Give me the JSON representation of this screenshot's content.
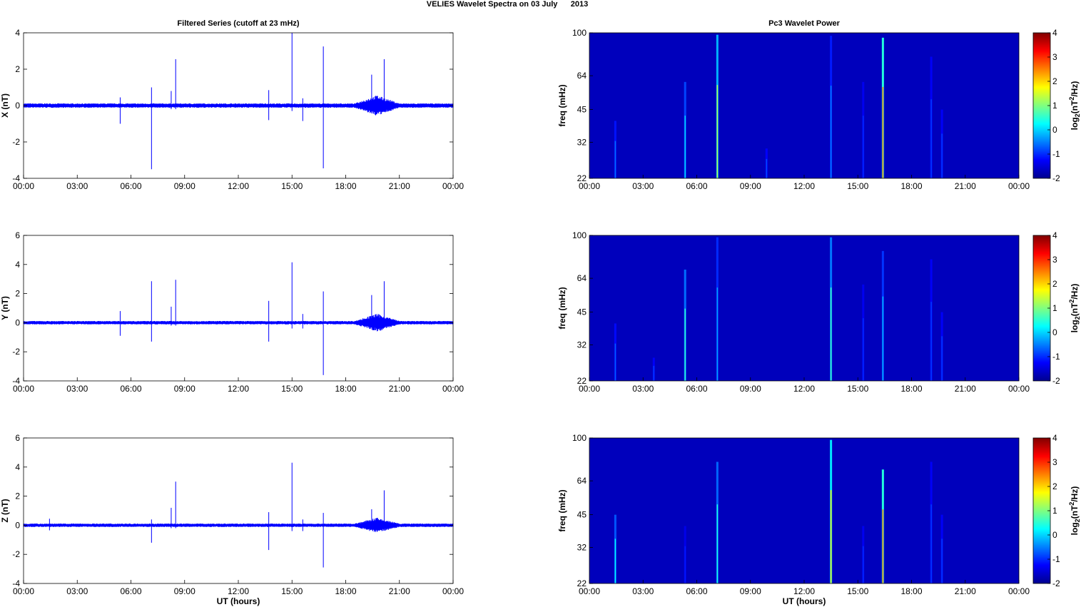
{
  "figure": {
    "title": "VELIES Wavelet Spectra on 03 July      2013",
    "left_title": "Filtered Series (cutoff at 23 mHz)",
    "right_title": "Pc3 Wavelet Power",
    "xlabel": "UT (hours)",
    "freq_label": "freq (mHz)",
    "colorbar_label": "log2(nT2/Hz)"
  },
  "x_ticks": [
    "00:00",
    "03:00",
    "06:00",
    "09:00",
    "12:00",
    "15:00",
    "18:00",
    "21:00",
    "00:00"
  ],
  "freq_ticks": [
    "100",
    "64",
    "45",
    "32",
    "22"
  ],
  "colorbar_ticks": [
    "4",
    "3",
    "2",
    "1",
    "0",
    "-1",
    "-2"
  ],
  "colors": {
    "trace": "#0000ff",
    "background_power": "#1430b8"
  },
  "chart_data": [
    {
      "type": "line",
      "name": "X",
      "ylabel": "X (nT)",
      "xlim": [
        0,
        24
      ],
      "ylim": [
        -4,
        4
      ],
      "y_ticks": [
        "4",
        "2",
        "0",
        "-2",
        "-4"
      ],
      "noise_amplitude": 0.12,
      "spikes": [
        {
          "t": 5.4,
          "hi": 0.45,
          "lo": -1.0
        },
        {
          "t": 7.15,
          "hi": 1.0,
          "lo": -3.5
        },
        {
          "t": 8.25,
          "hi": 0.8,
          "lo": -0.2
        },
        {
          "t": 8.5,
          "hi": 2.55,
          "lo": -0.2
        },
        {
          "t": 13.7,
          "hi": 0.85,
          "lo": -0.8
        },
        {
          "t": 15.0,
          "hi": 4.0,
          "lo": -0.3
        },
        {
          "t": 15.6,
          "hi": 0.4,
          "lo": -0.85
        },
        {
          "t": 16.75,
          "hi": 3.25,
          "lo": -3.45
        },
        {
          "t": 19.45,
          "hi": 1.7,
          "lo": -0.3
        },
        {
          "t": 20.15,
          "hi": 2.55,
          "lo": -0.2
        }
      ],
      "active_band": {
        "start": 18.5,
        "end": 21.0,
        "peak": 0.45
      }
    },
    {
      "type": "line",
      "name": "Y",
      "ylabel": "Y (nT)",
      "xlim": [
        0,
        24
      ],
      "ylim": [
        -4,
        6
      ],
      "y_ticks": [
        "6",
        "4",
        "2",
        "0",
        "-2",
        "-4"
      ],
      "noise_amplitude": 0.12,
      "spikes": [
        {
          "t": 5.4,
          "hi": 0.8,
          "lo": -0.9
        },
        {
          "t": 7.15,
          "hi": 2.85,
          "lo": -1.3
        },
        {
          "t": 8.25,
          "hi": 1.1,
          "lo": -0.2
        },
        {
          "t": 8.5,
          "hi": 2.95,
          "lo": -0.2
        },
        {
          "t": 13.7,
          "hi": 1.5,
          "lo": -1.3
        },
        {
          "t": 15.0,
          "hi": 4.15,
          "lo": -0.4
        },
        {
          "t": 15.6,
          "hi": 0.6,
          "lo": -0.4
        },
        {
          "t": 16.75,
          "hi": 2.15,
          "lo": -3.6
        },
        {
          "t": 19.45,
          "hi": 1.9,
          "lo": -0.3
        },
        {
          "t": 20.15,
          "hi": 2.85,
          "lo": -0.3
        }
      ],
      "active_band": {
        "start": 18.5,
        "end": 21.0,
        "peak": 0.5
      }
    },
    {
      "type": "line",
      "name": "Z",
      "ylabel": "Z (nT)",
      "xlim": [
        0,
        24
      ],
      "ylim": [
        -4,
        6
      ],
      "y_ticks": [
        "6",
        "4",
        "2",
        "0",
        "-2",
        "-4"
      ],
      "noise_amplitude": 0.12,
      "spikes": [
        {
          "t": 1.45,
          "hi": 0.45,
          "lo": -0.35
        },
        {
          "t": 7.15,
          "hi": 0.4,
          "lo": -1.2
        },
        {
          "t": 8.25,
          "hi": 1.2,
          "lo": -0.2
        },
        {
          "t": 8.5,
          "hi": 3.0,
          "lo": -0.2
        },
        {
          "t": 13.7,
          "hi": 0.9,
          "lo": -1.7
        },
        {
          "t": 15.0,
          "hi": 4.3,
          "lo": -0.4
        },
        {
          "t": 15.6,
          "hi": 0.4,
          "lo": -0.4
        },
        {
          "t": 16.75,
          "hi": 0.85,
          "lo": -2.9
        },
        {
          "t": 19.45,
          "hi": 1.1,
          "lo": -0.3
        },
        {
          "t": 20.15,
          "hi": 2.4,
          "lo": -0.3
        }
      ],
      "active_band": {
        "start": 18.5,
        "end": 21.0,
        "peak": 0.4
      }
    },
    {
      "type": "heatmap",
      "name": "X power",
      "ylabel": "freq (mHz)",
      "xlim": [
        0,
        24
      ],
      "ylim": [
        22,
        100
      ],
      "clim": [
        -2,
        4
      ],
      "background": -1.7,
      "streaks": [
        {
          "t": 1.45,
          "f_top": 40,
          "level": -0.6
        },
        {
          "t": 5.35,
          "f_top": 60,
          "level": 0.0
        },
        {
          "t": 7.15,
          "f_top": 98,
          "level": 1.3
        },
        {
          "t": 9.9,
          "f_top": 30,
          "level": -0.8
        },
        {
          "t": 13.5,
          "f_top": 97,
          "level": -0.5
        },
        {
          "t": 15.3,
          "f_top": 60,
          "level": -1.0
        },
        {
          "t": 16.4,
          "f_top": 95,
          "level": 2.6
        },
        {
          "t": 19.1,
          "f_top": 78,
          "level": -0.9
        },
        {
          "t": 19.7,
          "f_top": 45,
          "level": -0.9
        }
      ]
    },
    {
      "type": "heatmap",
      "name": "Y power",
      "ylabel": "freq (mHz)",
      "xlim": [
        0,
        24
      ],
      "ylim": [
        22,
        100
      ],
      "clim": [
        -2,
        4
      ],
      "background": -1.7,
      "streaks": [
        {
          "t": 1.45,
          "f_top": 40,
          "level": -0.7
        },
        {
          "t": 3.6,
          "f_top": 28,
          "level": -0.9
        },
        {
          "t": 5.35,
          "f_top": 70,
          "level": 0.5
        },
        {
          "t": 7.15,
          "f_top": 98,
          "level": -0.3
        },
        {
          "t": 13.5,
          "f_top": 98,
          "level": 0.6
        },
        {
          "t": 15.3,
          "f_top": 60,
          "level": -1.0
        },
        {
          "t": 16.4,
          "f_top": 85,
          "level": -0.2
        },
        {
          "t": 19.1,
          "f_top": 78,
          "level": -0.9
        },
        {
          "t": 19.7,
          "f_top": 45,
          "level": -0.9
        }
      ]
    },
    {
      "type": "heatmap",
      "name": "Z power",
      "ylabel": "freq (mHz)",
      "xlim": [
        0,
        24
      ],
      "ylim": [
        22,
        100
      ],
      "clim": [
        -2,
        4
      ],
      "background": -1.7,
      "streaks": [
        {
          "t": 1.45,
          "f_top": 45,
          "level": 0.2
        },
        {
          "t": 5.35,
          "f_top": 40,
          "level": -1.1
        },
        {
          "t": 7.15,
          "f_top": 78,
          "level": 0.4
        },
        {
          "t": 13.5,
          "f_top": 98,
          "level": 1.9
        },
        {
          "t": 15.3,
          "f_top": 40,
          "level": -1.0
        },
        {
          "t": 16.4,
          "f_top": 72,
          "level": 2.6
        },
        {
          "t": 19.1,
          "f_top": 78,
          "level": -0.9
        },
        {
          "t": 19.7,
          "f_top": 45,
          "level": -0.9
        }
      ]
    }
  ]
}
